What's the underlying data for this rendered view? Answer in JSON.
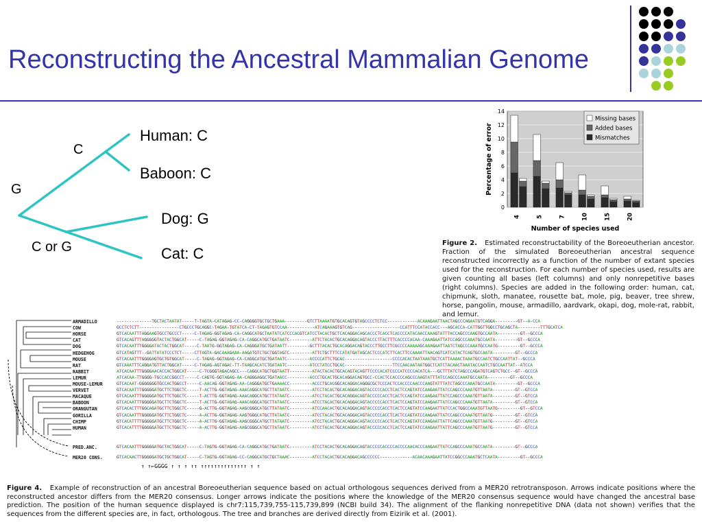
{
  "slide": {
    "title": "Reconstructing the Ancestral Mammalian Genome",
    "colors": {
      "title": "#3333aa",
      "tree_lines": "#2ec4c4",
      "dot_black": "#000000",
      "dot_navy": "#33339a",
      "dot_lightblue": "#a9d4dc",
      "dot_green": "#99cc22"
    }
  },
  "tree": {
    "leaves": [
      "Human: C",
      "Baboon: C",
      "Dog: G",
      "Cat: C"
    ],
    "internal": [
      "C",
      "G",
      "C or G"
    ]
  },
  "figure2": {
    "caption_bold": "Figure 2.",
    "caption": "Estimated reconstructability of the Boreoeutherian ancestor. Fraction of the simulated Boreoeutherian ancestral sequence reconstructed incorrectly as a function of the number of extant species used for the reconstruction. For each number of species used, results are given counting all bases (left columns) and only nonrepetitive bases (right columns). Species are added in the following order: human, cat, chipmunk, sloth, manatee, rousette bat, mole, pig, beaver, tree shrew, horse, pangolin, mouse, armadillo, aardvark, okapi, dog, mole-rat, rabbit, and lemur."
  },
  "chart_data": {
    "type": "bar",
    "stacked": true,
    "title": "",
    "xlabel": "Number of species used",
    "ylabel": "Percentage of error",
    "ylim": [
      0,
      14
    ],
    "yticks": [
      0,
      2,
      4,
      6,
      8,
      10,
      12,
      14
    ],
    "categories": [
      "4",
      "5",
      "7",
      "10",
      "15",
      "20"
    ],
    "legend": [
      "Missing bases",
      "Added bases",
      "Mismatches"
    ],
    "legend_position": "top-right",
    "grid": true,
    "colors": {
      "Missing bases": "#ffffff",
      "Added bases": "#666666",
      "Mismatches": "#2a2a2a",
      "background": "#cfcfcf"
    },
    "groups": [
      {
        "category": "4",
        "all": {
          "Mismatches": 5.0,
          "Added bases": 4.5,
          "Missing bases": 3.9
        },
        "nonrepetitive": {
          "Mismatches": 3.0,
          "Added bases": 0.8,
          "Missing bases": 0.4
        }
      },
      {
        "category": "5",
        "all": {
          "Mismatches": 4.5,
          "Added bases": 2.3,
          "Missing bases": 3.8
        },
        "nonrepetitive": {
          "Mismatches": 2.7,
          "Added bases": 0.8,
          "Missing bases": 0.3
        }
      },
      {
        "category": "7",
        "all": {
          "Mismatches": 2.8,
          "Added bases": 1.2,
          "Missing bases": 2.5
        },
        "nonrepetitive": {
          "Mismatches": 1.8,
          "Added bases": 0.3,
          "Missing bases": 0.2
        }
      },
      {
        "category": "10",
        "all": {
          "Mismatches": 1.8,
          "Added bases": 0.7,
          "Missing bases": 2.2
        },
        "nonrepetitive": {
          "Mismatches": 1.2,
          "Added bases": 0.4,
          "Missing bases": 0.2
        }
      },
      {
        "category": "15",
        "all": {
          "Mismatches": 1.4,
          "Added bases": 0.4,
          "Missing bases": 1.3
        },
        "nonrepetitive": {
          "Mismatches": 0.8,
          "Added bases": 0.3,
          "Missing bases": 0.2
        }
      },
      {
        "category": "20",
        "all": {
          "Mismatches": 0.9,
          "Added bases": 0.3,
          "Missing bases": 0.4
        },
        "nonrepetitive": {
          "Mismatches": 0.7,
          "Added bases": 0.2,
          "Missing bases": 0.1
        }
      }
    ]
  },
  "figure4": {
    "caption_bold": "Figure 4.",
    "caption": "Example of reconstruction of an ancestral Boreoeutherian sequence based on actual orthologous sequences derived from a MER20 retrotransposon. Arrows indicate positions where the reconstructed ancestor differs from the MER20 consensus. Longer arrows indicate the positions where the knowledge of the MER20 consensus sequence would have changed the ancestral base prediction. The position of the human sequence displayed is chr7:115,739,755-115,739,899 (NCBI build 34). The alignment of the flanking nonrepetitive DNA (data not shown) verifies that the sequences from the different species are, in fact, orthologous. The tree and branches are derived directly from Eizirik et al. (2001).",
    "species": [
      "ARMADILLO",
      "COW",
      "HORSE",
      "CAT",
      "DOG",
      "HEDGEHOG",
      "MOUSE",
      "RAT",
      "RABBIT",
      "LEMUR",
      "MOUSE-LEMUR",
      "VERVET",
      "MACAQUE",
      "BABOON",
      "ORANGUTAN",
      "GORILLA",
      "CHIMP",
      "HUMAN"
    ],
    "pred_label": "PRED.ANC.",
    "cons_label": "MER20 CONS.",
    "sequences": [
      "--------------TGCTACTAATAT-----T-TAGTA-CATAGAG-CC-CAGGGGTGCTGCTGAAA---------GTCTTAAAATGTGCACAGTGTAGCCCCTCTCC------------ACAAAGAATTAACTAGCCCAGAATGTCAGGA---------GT--A-CCA",
      "GCCTCTCTT----------------CTGCCCTGCAGGC-TAGAA-TGTATCA-CT-TAGAGTGTCCAA-----------ATCAGAAAGTGTCAG-------------------CCATTTCCATACCACC---AGCACCA-CATTGGTTGGCCTGCAGCTA---------TTTGCATCA",
      "GTCACAATTTAGGAAGTGCCTGCCCT-----C-TAGAG-GGTAGAG-CA-CAGGCATGCTAATATCATCCCACGTCATCCTACACTGCTCACAGGACAGCACCCTCACCTCACCCCATACAACCAAAGTATTTACCAGCCCAAGTGCCAATA---------GT--GCCCA",
      "GTCACAGTTTAGGGGGTACTACTGGCAT-----C-TAGAG-GGTAGAG-CA-CAGGCATGCTGATAATC---------ATTCTACACTGCACAGGACAGTACCCTTACTTTCACCCCACAA-CAAAGAATTATCCAGCCCAAATGCCAATA---------GT--GCCCA",
      "GTCACAATTTGGGGATACTACTGGCAT-----C-TAATG-GGTAGAG-CA-CAGGGATGCTGATAATT---------GCTTTACACTGCACAGGACAGTACCCTTGCCTTCGCCCCAAAAAGCAAAGAATTAATCTAGCCCAAATGCCAATG---------GT--GCCCA",
      "GTCATAGTTT--GATTATATCCCTCT-----CTTAGTA-GACAAAGAAA-AAGATGTCTGCTGGTAGTC---------ATTCTGCTTTCCATATGATAGCACTCCCATCTTCACTTCCAAAATTAACAGTCATCATACTCAGTGCCAATA---------GT--GCCCA",
      "GTCACAATTTGGGGAGTGCTGTGGCAT-----C-TAGAG-GGTAGAG-CA-CAGGCATGCTGATAATC---------ACCCCATTCTGCAC-------------------CCCCACACTAATAAATGCTCATTAAAACTAAATGCCAATCTGCCAATTAT--GCCCA",
      "GTCAAATTTCAGGATGTTACTGGCAT-----C-TAGAG-AGTAGAC-TT-TAAGCACATCTGATAATC---------ATCCTATCCTGCAC-------------------TTCCAACAATAATGGCTCATCTACAACTAAATACCAATCTGCCAATTAT--ATCCA",
      "ATCACAATTTGGGGAACACCACTGGCAT-----C-TCGGGTAGACAGCC---CAGGCATGCTGGTAATT---------ATACTACACTGCACAGTACAGTTCCCCACATCCCCATCCCCACATCA---GCTTTATCTAGCCCAGATGTCAGTCTGCC--GT--GCCCA",
      "ATCACAA-TTGGGG-TGCCACCGGCCT-----C-CAGTG-GGTAGAG-AA-CAGGGAGGCTGATAACC---------ACCCTGCACTGCACAGGACAGTGCC-CCACTCCACCCCAGCCCAAGTATTTATCCAGCCCAAATGCCAATA---------GT--GCCCA",
      "GTCACAAT-GGGGGGGTGCCACTGGCCT-----C-AACAG-GGTAGAG-AA-CAGGGATGCTGAAAACC---------ACCCTGCACGGCACAGGACAGGGCGCTCCCACTCCACCCCAACCCAAGTATTTATCTAGCCCAAATGCCAATA---------GT--GCCCA",
      "GTCACAATTTGGGGGATGCTTCTGGCTC-----T-ACTTG-GGTAGAG-AAACAGGCATGCTTATAATC---------ATCCTACACTGCACAGGACAGTACCCCCACCTCACTCCAGTATCCAAGAATTATCCAGCCCAAATGTTAATA---------GT--GTCCA",
      "GTCACAATTTGGGGGATGCTTCTGGCTC-----T-ACTTG-GGTAGAG-AAACAGGCATGCTTATAATC---------ATCCTACACTGCACAGGACAGTACCCCCACCTCACTCCAGTATCCAAGAATTATCCAGCCCAAATGTTAATA---------GT--GTCCA",
      "GTCACAATTTGGGGGATGCTTCTGGCTC-----T-ACTTG-GGTAGAG-AAACAGGCATGCTTATAATC---------ATCCTACACTGCACAGGACAGTACCCCCACCTCACTCCAGTATCCAAGAATTATCCAGCCCAAATGTTAATA---------GT--GTCCA",
      "GTCACACTTTGGCAGATGCTTCTGGCTC-----G-ACTTG-GGTAGAG-AAGCGGGCATGCTTATAATC---------ATCCAACACTGCACAGGACAGTACCCCCACCTCACTCCAGTATCCAAGAATTATCCACTGGCCAAATGTTAATG---------GT--GTCCA",
      "GTCACAATTTGGGGGATGCTTCTGGCTC-----A-ACTTG-GGTAGAG-AAGTGGGCATGCTTATAATC---------ATCCTACACTGCACAGGACAGTACCCCCACCTCACTCCAGTATCCAAGAATTATCCAGCCCAAATGTTAATG---------GT--GTCCA",
      "GTCACATTTTGGGGGATGCTTCTGGCTC-----A-ACTTG-GGTAGAG-AAGCGGGCATGCTTATAATC---------ATCCTACACTGCACAGGACAGTACCCCCACCTCACTCCAGTATCCAAGAATTATTCAGCCCAAATGTTAATG---------GT--GTCCA",
      "GTCACATTTTGGGGGATGCTTCTGGCTC-----A-ACTTG-GGTAGAG-AAGCGGGCATGCTTATAATC---------ATCCTACACTGCACAGGACAGTACCCCCACCTCACTCCAGTATCCAAGAATTATTCAGCCCAAATGTTAATG---------GT--GTCCA"
    ],
    "pred_sequence": "GTCACAATTTGGGGGATGCTACTGGCAT-----C-TAGTG-GGTAGAG-CA-CAGGCATGCTGATAATC---------ATCCTACACTGCACAGGACAGTACCCCCACCCCACCCCAACACCCAAGAATTATCCAGCCCAAATGCCAATA---------GT--GCCCA",
    "cons_sequence": "GTCACAACTTGGGGGATGCTGCTGGCAT-----C-TAGTG-GGTAGAG-CC-CAGGCATGCTGCTAAAC---------ATCCTACACTGCACAGGACAGCCCCCC-------------ACAACAAAGAATTATCCGGCCCAAATGCTCAATA---------GT--GCCCA",
    "marker_row": "↑  ↑←GGGG                                  ↑         ↑   ↑                       ↑↑   ↑↑↑↑↑↑↑↑↑↑↑↑↑↑                   ↑                  ↑"
  }
}
